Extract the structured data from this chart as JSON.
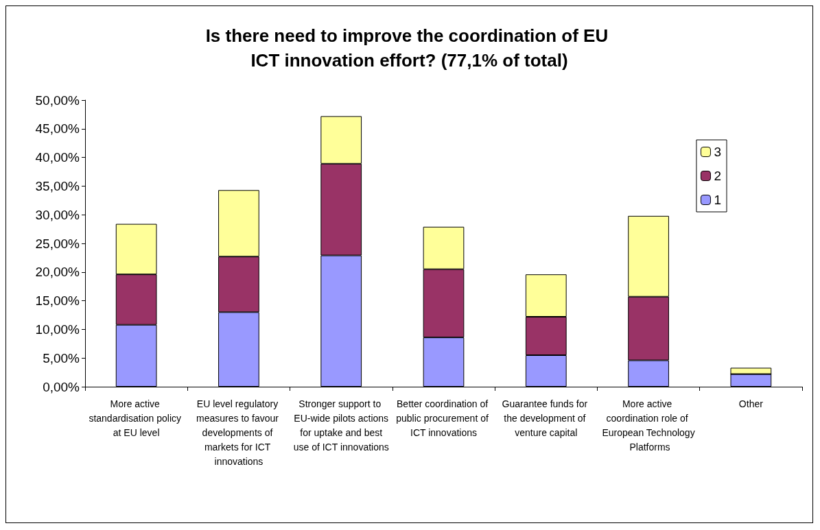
{
  "chart_data": {
    "type": "bar",
    "title": "Is there need to improve the coordination of EU ICT innovation effort? (77,1% of total)",
    "categories": [
      "More active standardisation policy at EU level",
      "EU level regulatory measures to favour developments of markets for ICT innovations",
      "Stronger support to EU-wide pilots actions for uptake and best use of ICT innovations",
      "Better coordination of public procurement of ICT innovations",
      "Guarantee funds for the development of venture capital",
      "More active coordination role of European Technology Platforms",
      "Other"
    ],
    "stacked": true,
    "series": [
      {
        "name": "1",
        "color": "#9999ff",
        "values": [
          10.8,
          13.0,
          22.9,
          8.6,
          5.5,
          4.6,
          2.2
        ]
      },
      {
        "name": "2",
        "color": "#993366",
        "values": [
          8.8,
          9.7,
          16.0,
          11.9,
          6.7,
          11.1,
          0
        ]
      },
      {
        "name": "3",
        "color": "#ffff99",
        "values": [
          8.8,
          11.6,
          8.3,
          7.4,
          7.4,
          14.1,
          1.1
        ]
      }
    ],
    "ylim": [
      0,
      50
    ],
    "yticks": [
      {
        "value": 0,
        "label": "0,00%"
      },
      {
        "value": 5,
        "label": "5,00%"
      },
      {
        "value": 10,
        "label": "10,00%"
      },
      {
        "value": 15,
        "label": "15,00%"
      },
      {
        "value": 20,
        "label": "20,00%"
      },
      {
        "value": 25,
        "label": "25,00%"
      },
      {
        "value": 30,
        "label": "30,00%"
      },
      {
        "value": 35,
        "label": "35,00%"
      },
      {
        "value": 40,
        "label": "40,00%"
      },
      {
        "value": 45,
        "label": "45,00%"
      },
      {
        "value": 50,
        "label": "50,00%"
      }
    ],
    "grid": false,
    "legend": "right"
  }
}
